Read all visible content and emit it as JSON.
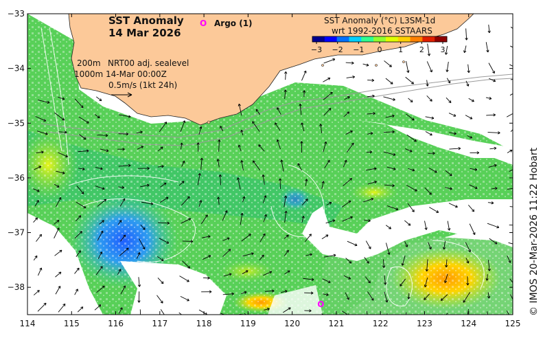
{
  "title": {
    "line1": "SST Anomaly",
    "line2": "14 Mar 2026"
  },
  "argo": {
    "marker": "O",
    "label": "Argo (1)"
  },
  "legend": {
    "depth1": "200m",
    "depth2": "1000m",
    "product": "NRT00 adj. sealevel",
    "datetime": "14-Mar 00:00Z",
    "scale": "0.5m/s (1kt 24h)"
  },
  "colorbar": {
    "title1": "SST Anomaly (°C) L3SM-1d",
    "title2": "wrt 1992-2016 SSTAARS",
    "ticks": [
      "−3",
      "−2",
      "−1",
      "0",
      "1",
      "2",
      "3"
    ],
    "colors": [
      "#00008f",
      "#0000ff",
      "#0070ff",
      "#00d0ff",
      "#30ff90",
      "#90ff30",
      "#e0ff00",
      "#ffd000",
      "#ff8000",
      "#e02000",
      "#8f0000"
    ]
  },
  "credit": "© IMOS 20-Mar-2026 11:22 Hobart",
  "axes": {
    "lon_ticks": [
      "114",
      "115",
      "116",
      "117",
      "118",
      "119",
      "120",
      "121",
      "122",
      "123",
      "124",
      "125"
    ],
    "lat_ticks": [
      "−33",
      "−34",
      "−35",
      "−36",
      "−37",
      "−38"
    ],
    "lon_range": [
      114,
      125
    ],
    "lat_range": [
      -38.5,
      -33
    ]
  },
  "colors": {
    "land": "#fcc999",
    "argo_marker": "#ff00ff",
    "background": "#ffffff"
  },
  "map_data": {
    "argo_float": {
      "lon": 120.65,
      "lat": -38.3
    },
    "sst_regions": [
      {
        "name": "cool-core",
        "lon": 116.4,
        "lat": -37.1,
        "anomaly": -1.8
      },
      {
        "name": "coastal-shelf",
        "lon": 119.5,
        "lat": -35.5,
        "anomaly": 0.3
      },
      {
        "name": "western-warm",
        "lon": 114.5,
        "lat": -35.8,
        "anomaly": 0.9
      },
      {
        "name": "southeast-warm",
        "lon": 123.4,
        "lat": -37.9,
        "anomaly": 1.6
      },
      {
        "name": "south-warm",
        "lon": 119.3,
        "lat": -38.3,
        "anomaly": 1.7
      }
    ]
  }
}
